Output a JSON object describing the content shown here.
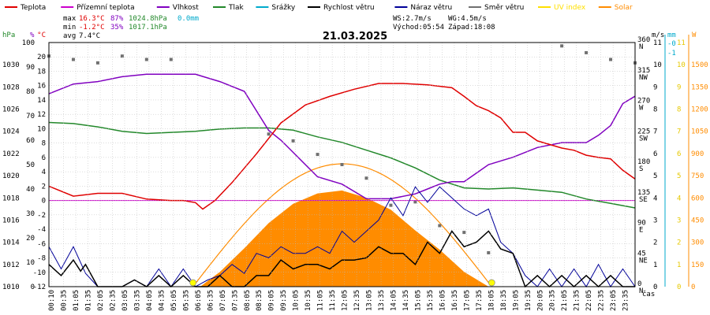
{
  "legend": [
    {
      "label": "Teplota",
      "color": "#e00000"
    },
    {
      "label": "Přízemní teplota",
      "color": "#cc00cc"
    },
    {
      "label": "Vlhkost",
      "color": "#8000c0"
    },
    {
      "label": "Tlak",
      "color": "#22882a"
    },
    {
      "label": "Srážky",
      "color": "#00aacc"
    },
    {
      "label": "Rychlost větru",
      "color": "#000000"
    },
    {
      "label": "Náraz větru",
      "color": "#000099"
    },
    {
      "label": "Směr větru",
      "color": "#707070"
    },
    {
      "label": "UV index",
      "color": "#ffe000"
    },
    {
      "label": "Solar",
      "color": "#ff8c00"
    }
  ],
  "stats": {
    "max_label": "max",
    "max_temp": "16.3°C",
    "max_hum": "87%",
    "max_press": "1024.8hPa",
    "rain": "0.0mm",
    "min_label": "min",
    "min_temp": "-1.2°C",
    "min_hum": "35%",
    "min_press": "1017.1hPa",
    "avg_label": "avg",
    "avg_temp": "7.4°C",
    "ws": "WS:2.7m/s",
    "wg": "WG:4.5m/s",
    "sunrise": "Východ:05:54",
    "sunset": "Západ:18:08"
  },
  "colors": {
    "temp": "#e00000",
    "dew": "#cc00cc",
    "hum": "#8000c0",
    "press": "#22882a",
    "rain": "#00aacc",
    "wind": "#000000",
    "gust": "#000099",
    "dir": "#707070",
    "uv": "#ffe000",
    "solar": "#ff8c00",
    "solar_curve": "#ff8c00",
    "grid": "#bbbbbb"
  },
  "chart_data": {
    "type": "line",
    "title": "21.03.2025",
    "xlabel": "čas",
    "x_ticks": [
      "00:10",
      "00:35",
      "01:05",
      "01:35",
      "02:05",
      "02:35",
      "03:05",
      "03:35",
      "04:05",
      "04:35",
      "05:05",
      "05:35",
      "06:05",
      "06:35",
      "07:05",
      "07:35",
      "08:05",
      "08:35",
      "09:05",
      "09:35",
      "10:05",
      "10:35",
      "11:05",
      "11:35",
      "12:05",
      "12:35",
      "13:05",
      "13:35",
      "14:05",
      "14:35",
      "15:05",
      "15:35",
      "16:05",
      "16:35",
      "17:05",
      "17:35",
      "18:05",
      "18:35",
      "19:05",
      "19:35",
      "20:05",
      "20:35",
      "21:05",
      "21:35",
      "22:05",
      "22:35",
      "23:05",
      "23:35"
    ],
    "axes": {
      "pressure": {
        "label": "hPa",
        "ticks": [
          "1010",
          "1012",
          "1014",
          "1016",
          "1018",
          "1020",
          "1022",
          "1024",
          "1026",
          "1028",
          "1030"
        ],
        "range": [
          1010,
          1032
        ]
      },
      "humidity": {
        "label": "%",
        "ticks": [
          "0",
          "10",
          "20",
          "30",
          "40",
          "50",
          "60",
          "70",
          "80",
          "90",
          "100"
        ],
        "range": [
          0,
          100
        ]
      },
      "temperature": {
        "label": "°C",
        "ticks": [
          "-12",
          "-10",
          "-8",
          "-6",
          "-4",
          "-2",
          "0",
          "2",
          "4",
          "6",
          "8",
          "10",
          "12",
          "14",
          "16",
          "18",
          "20"
        ],
        "range": [
          -12,
          22
        ]
      },
      "direction": {
        "ticks": [
          "0 N",
          "45 NE",
          "90 E",
          "135 SE",
          "180 S",
          "225 SW",
          "270 W",
          "315 NW",
          "360 N"
        ],
        "range": [
          0,
          360
        ]
      },
      "wind": {
        "label": "m/s",
        "ticks": [
          "0",
          "1",
          "2",
          "3",
          "4",
          "5",
          "6",
          "7",
          "8",
          "9",
          "10",
          "11"
        ],
        "range": [
          0,
          11
        ]
      },
      "rain": {
        "label": "mm",
        "ticks": [
          "-0",
          "-1"
        ],
        "range": [
          0,
          1
        ]
      },
      "solar": {
        "label": "W",
        "ticks": [
          "0",
          "150",
          "300",
          "450",
          "600",
          "750",
          "900",
          "1050",
          "1200",
          "1350",
          "1500"
        ],
        "range": [
          0,
          1650
        ]
      },
      "uv": {
        "ticks": [
          "0",
          "1",
          "2",
          "3",
          "4",
          "5",
          "6",
          "7",
          "8",
          "9",
          "10",
          "11"
        ],
        "range": [
          0,
          11
        ]
      }
    },
    "series": [
      {
        "name": "Teplota",
        "axis": "temperature",
        "x": [
          0,
          1,
          2,
          3,
          4,
          5,
          5.5,
          6,
          6.3,
          6.8,
          7.5,
          8.5,
          9.5,
          10.5,
          11.5,
          12.5,
          13.5,
          14.5,
          15.5,
          16.5,
          17,
          17.5,
          18,
          18.5,
          19,
          19.5,
          20,
          21,
          21.5,
          22,
          22.5,
          23,
          23.5,
          24
        ],
        "values": [
          2,
          0.6,
          1.0,
          1.0,
          0.2,
          0,
          0,
          -0.3,
          -1.2,
          0,
          2.5,
          6.5,
          10.8,
          13.3,
          14.5,
          15.5,
          16.3,
          16.3,
          16.1,
          15.7,
          14.5,
          13.2,
          12.5,
          11.5,
          9.5,
          9.5,
          8.3,
          7.3,
          7,
          6.3,
          6,
          5.8,
          4.2,
          3
        ]
      },
      {
        "name": "Přízemní teplota",
        "axis": "temperature",
        "x": [
          0,
          24
        ],
        "values": [
          0,
          0
        ]
      },
      {
        "name": "Vlhkost",
        "axis": "humidity",
        "x": [
          0,
          1,
          2,
          3,
          4,
          5,
          6,
          7,
          8,
          9,
          9.5,
          10,
          11,
          12,
          13,
          14,
          15,
          15.5,
          16,
          16.5,
          17,
          18,
          19,
          20,
          21,
          22,
          22.5,
          23,
          23.5,
          24
        ],
        "values": [
          79,
          83,
          84,
          86,
          87,
          87,
          87,
          84,
          80,
          64,
          60,
          55,
          45,
          42,
          36,
          36,
          38,
          40,
          42,
          43,
          43,
          50,
          53,
          57,
          59,
          59,
          62,
          66,
          75,
          78
        ]
      },
      {
        "name": "Tlak",
        "axis": "pressure",
        "x": [
          0,
          1,
          2,
          3,
          4,
          5,
          6,
          7,
          8,
          9,
          10,
          11,
          12,
          13,
          14,
          15,
          16,
          17,
          18,
          19,
          20,
          21,
          22,
          23,
          24
        ],
        "values": [
          1024.8,
          1024.7,
          1024.4,
          1024.0,
          1023.8,
          1023.9,
          1024.0,
          1024.2,
          1024.3,
          1024.3,
          1024.1,
          1023.5,
          1023.0,
          1022.3,
          1021.6,
          1020.7,
          1019.6,
          1018.9,
          1018.8,
          1018.9,
          1018.7,
          1018.5,
          1017.9,
          1017.5,
          1017.1
        ]
      },
      {
        "name": "Rychlost větru",
        "axis": "wind",
        "x": [
          0,
          0.5,
          1,
          1.3,
          1.5,
          2,
          2.5,
          3,
          3.5,
          4,
          4.5,
          5,
          5.5,
          6,
          6.5,
          7,
          7.5,
          8,
          8.5,
          9,
          9.5,
          10,
          10.5,
          11,
          11.5,
          12,
          12.5,
          13,
          13.5,
          14,
          14.5,
          15,
          15.5,
          16,
          16.5,
          17,
          17.5,
          18,
          18.5,
          19,
          19.5,
          20,
          20.5,
          21,
          21.5,
          22,
          22.5,
          23,
          23.5,
          24
        ],
        "values": [
          1,
          0.5,
          1.2,
          0.7,
          1,
          0,
          0,
          0,
          0.3,
          0,
          0.5,
          0,
          0.5,
          0,
          0,
          0.5,
          0,
          0,
          0.5,
          0.5,
          1.2,
          0.8,
          1,
          1,
          0.8,
          1.2,
          1.2,
          1.3,
          1.8,
          1.5,
          1.5,
          1,
          2,
          1.5,
          2.5,
          1.8,
          2,
          2.5,
          1.7,
          1.5,
          0,
          0.5,
          0,
          0.5,
          0,
          0.5,
          0,
          0.5,
          0,
          0
        ]
      },
      {
        "name": "Náraz větru",
        "axis": "wind",
        "x": [
          0,
          0.5,
          1,
          1.5,
          2,
          2.5,
          3,
          3.5,
          4,
          4.5,
          5,
          5.5,
          6,
          6.5,
          7,
          7.5,
          8,
          8.5,
          9,
          9.5,
          10,
          10.5,
          11,
          11.5,
          12,
          12.5,
          13,
          13.5,
          14,
          14.5,
          15,
          15.5,
          16,
          16.5,
          17,
          17.5,
          18,
          18.5,
          19,
          19.5,
          20,
          20.5,
          21,
          21.5,
          22,
          22.5,
          23,
          23.5,
          24
        ],
        "values": [
          1.8,
          0.8,
          1.8,
          0.6,
          0,
          0,
          0,
          0.3,
          0,
          0.8,
          0,
          0.8,
          0,
          0.3,
          0.5,
          1,
          0.6,
          1.5,
          1.3,
          1.8,
          1.5,
          1.5,
          1.8,
          1.5,
          2.5,
          2,
          2.5,
          3,
          4,
          3.2,
          4.5,
          3.8,
          4.5,
          4,
          3.5,
          3.2,
          3.5,
          2,
          1.5,
          0.5,
          0,
          0.8,
          0,
          0.8,
          0,
          1,
          0,
          0.8,
          0
        ]
      },
      {
        "name": "Směr větru",
        "axis": "direction",
        "x": [
          0,
          1,
          2,
          3,
          4,
          5,
          6,
          7,
          8,
          9,
          10,
          11,
          12,
          13,
          14,
          15,
          16,
          17,
          18,
          19,
          20,
          21,
          22,
          23,
          24
        ],
        "values": [
          340,
          335,
          330,
          340,
          335,
          335,
          null,
          null,
          null,
          225,
          215,
          195,
          180,
          160,
          120,
          125,
          90,
          80,
          50,
          null,
          null,
          355,
          345,
          335,
          330
        ]
      },
      {
        "name": "Solar",
        "axis": "solar",
        "x": [
          6.2,
          7,
          8,
          9,
          10,
          11,
          12,
          13,
          14,
          15,
          16,
          17,
          18,
          18.1
        ],
        "values": [
          0,
          100,
          260,
          430,
          560,
          630,
          650,
          600,
          520,
          380,
          250,
          100,
          0,
          0
        ]
      }
    ],
    "sunrise_marker": 5.9,
    "sunset_marker": 18.13
  }
}
